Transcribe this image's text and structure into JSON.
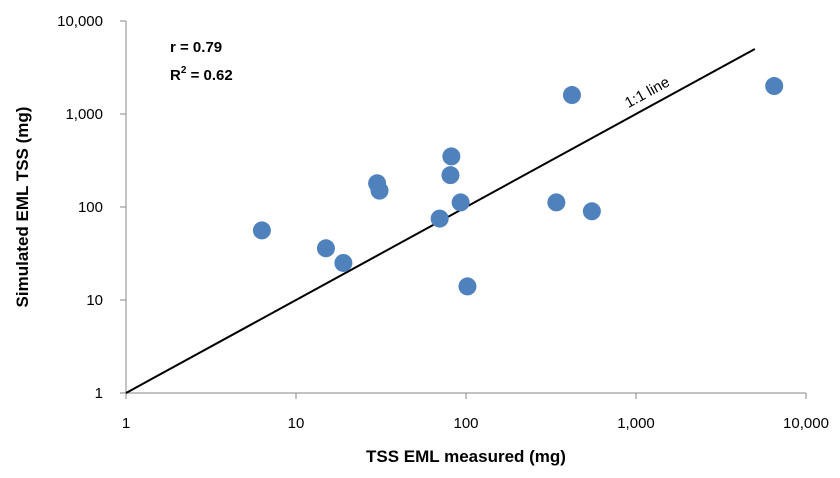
{
  "chart_data": {
    "type": "scatter",
    "xlabel": "TSS EML measured (mg)",
    "ylabel": "Simulated EML TSS (mg)",
    "x_scale": "log",
    "y_scale": "log",
    "xlim": [
      1,
      10000
    ],
    "ylim": [
      1,
      10000
    ],
    "x_ticks": [
      "1",
      "10",
      "100",
      "1,000",
      "10,000"
    ],
    "y_ticks": [
      "1",
      "10",
      "100",
      "1,000",
      "10,000"
    ],
    "grid": false,
    "legend": "none",
    "annotations": {
      "r_text": "r = 0.79",
      "r2_prefix": "R",
      "r2_sup": "2",
      "r2_suffix": " = 0.62",
      "line_label": "1:1 line"
    },
    "reference_line": {
      "from": [
        1,
        1
      ],
      "to": [
        5000,
        5000
      ]
    },
    "marker_color": "#4f81bd",
    "points": [
      {
        "x": 6.3,
        "y": 56
      },
      {
        "x": 15,
        "y": 36
      },
      {
        "x": 19,
        "y": 25
      },
      {
        "x": 30,
        "y": 180
      },
      {
        "x": 31,
        "y": 150
      },
      {
        "x": 70,
        "y": 75
      },
      {
        "x": 81,
        "y": 220
      },
      {
        "x": 82,
        "y": 350
      },
      {
        "x": 93,
        "y": 112
      },
      {
        "x": 102,
        "y": 14
      },
      {
        "x": 340,
        "y": 112
      },
      {
        "x": 420,
        "y": 1600
      },
      {
        "x": 550,
        "y": 90
      },
      {
        "x": 6500,
        "y": 2000
      }
    ]
  }
}
